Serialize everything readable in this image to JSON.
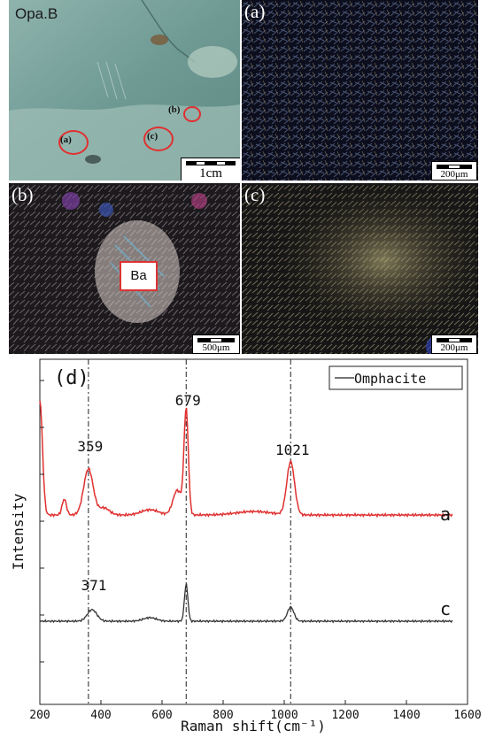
{
  "panels": {
    "sample": {
      "label": "Opa.B",
      "scale": "1cm",
      "markers": [
        "(a)",
        "(b)",
        "(c)"
      ]
    },
    "a": {
      "label": "(a)",
      "scale": "200μm"
    },
    "b": {
      "label": "(b)",
      "scale": "500μm",
      "tag": "Ba"
    },
    "c": {
      "label": "(c)",
      "scale": "200μm"
    }
  },
  "chart_data": {
    "type": "line",
    "panel_label": "(d)",
    "legend": "Omphacite",
    "xlabel": "Raman shift(cm⁻¹)",
    "ylabel": "Intensity",
    "xlim": [
      200,
      1600
    ],
    "x_ticks": [
      200,
      400,
      600,
      800,
      1000,
      1200,
      1400,
      1600
    ],
    "grid": false,
    "reference_lines": [
      359,
      679,
      1021
    ],
    "series": [
      {
        "name": "a",
        "color": "#e03030",
        "peaks": [
          {
            "x": 359,
            "label": "359"
          },
          {
            "x": 679,
            "label": "679"
          },
          {
            "x": 1021,
            "label": "1021"
          }
        ]
      },
      {
        "name": "c",
        "color": "#333333",
        "peaks": [
          {
            "x": 371,
            "label": "371"
          }
        ]
      }
    ]
  }
}
